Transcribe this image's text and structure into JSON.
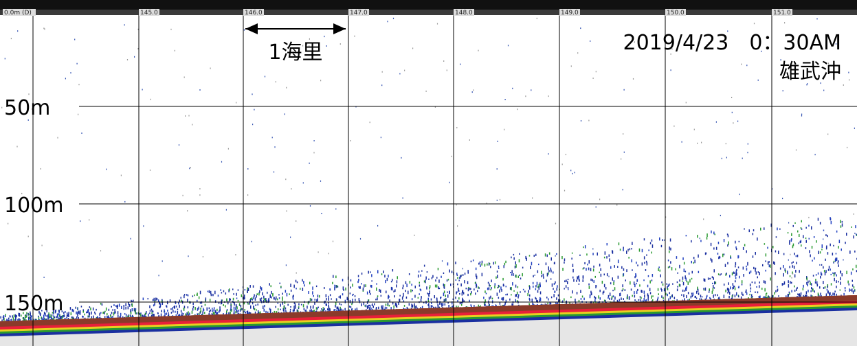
{
  "header": {
    "labels": [
      "0.0m (D)",
      "145.0",
      "146.0",
      "147.0",
      "148.0",
      "149.0",
      "150.0",
      "151.0"
    ]
  },
  "depth_labels": [
    "50m",
    "100m",
    "150m"
  ],
  "scale_label": "1海里",
  "date": "2019/4/23　0：30AM",
  "location": "雄武沖"
}
